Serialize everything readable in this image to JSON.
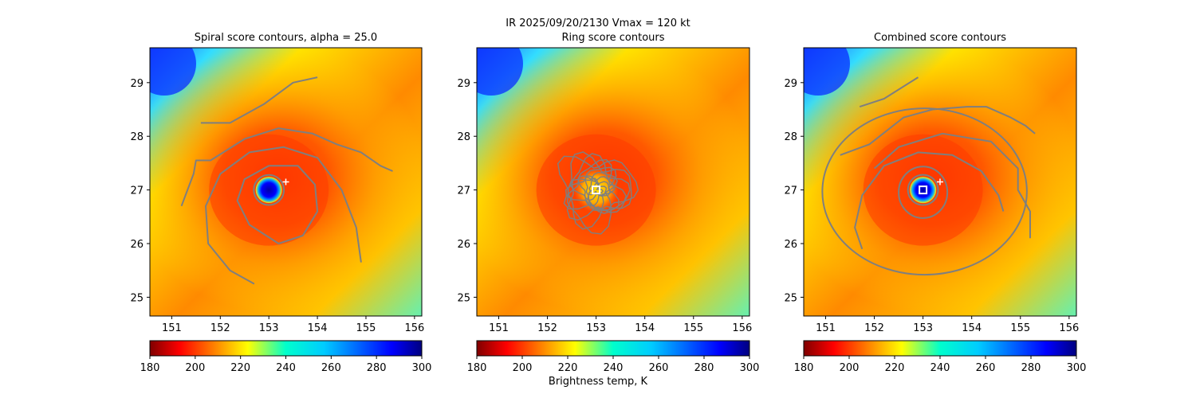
{
  "figure": {
    "suptitle": "IR  2025/09/20/2130    Vmax = 120 kt",
    "colorbar_label": "Brightness temp, K"
  },
  "chart_data": [
    {
      "type": "heatmap",
      "title": "Spiral score contours, alpha = 25.0",
      "xlim": [
        150.55,
        156.15
      ],
      "ylim": [
        24.65,
        29.65
      ],
      "xticks": [
        151,
        152,
        153,
        154,
        155,
        156
      ],
      "yticks": [
        25,
        26,
        27,
        28,
        29
      ],
      "colormap": "jet_r",
      "clim": [
        180,
        300
      ],
      "colorbar_ticks": [
        180,
        200,
        220,
        240,
        260,
        280,
        300
      ],
      "storm_center": [
        153.0,
        27.0
      ],
      "eye_radius_deg": 0.2,
      "markers": [
        {
          "symbol": "plus",
          "x": 153.35,
          "y": 27.15,
          "color": "#ffffff"
        }
      ],
      "contours": "spiral",
      "contour_color": "#7f7f7f"
    },
    {
      "type": "heatmap",
      "title": "Ring score contours",
      "xlim": [
        150.55,
        156.15
      ],
      "ylim": [
        24.65,
        29.65
      ],
      "xticks": [
        151,
        152,
        153,
        154,
        155,
        156
      ],
      "yticks": [
        25,
        26,
        27,
        28,
        29
      ],
      "colormap": "jet_r",
      "clim": [
        180,
        300
      ],
      "colorbar_ticks": [
        180,
        200,
        220,
        240,
        260,
        280,
        300
      ],
      "storm_center": [
        153.0,
        27.0
      ],
      "eye_radius_deg": 0.0,
      "markers": [
        {
          "symbol": "square",
          "x": 153.0,
          "y": 27.0,
          "color": "#ffffff"
        }
      ],
      "contours": "ring",
      "contour_color": "#7f7f7f"
    },
    {
      "type": "heatmap",
      "title": "Combined score contours",
      "xlim": [
        150.55,
        156.15
      ],
      "ylim": [
        24.65,
        29.65
      ],
      "xticks": [
        151,
        152,
        153,
        154,
        155,
        156
      ],
      "yticks": [
        25,
        26,
        27,
        28,
        29
      ],
      "colormap": "jet_r",
      "clim": [
        180,
        300
      ],
      "colorbar_ticks": [
        180,
        200,
        220,
        240,
        260,
        280,
        300
      ],
      "storm_center": [
        153.0,
        27.0
      ],
      "eye_radius_deg": 0.2,
      "markers": [
        {
          "symbol": "square",
          "x": 153.0,
          "y": 27.0,
          "color": "#ffffff"
        },
        {
          "symbol": "plus",
          "x": 153.35,
          "y": 27.15,
          "color": "#ffffff"
        }
      ],
      "contours": "combined",
      "contour_color": "#7f7f7f"
    }
  ]
}
